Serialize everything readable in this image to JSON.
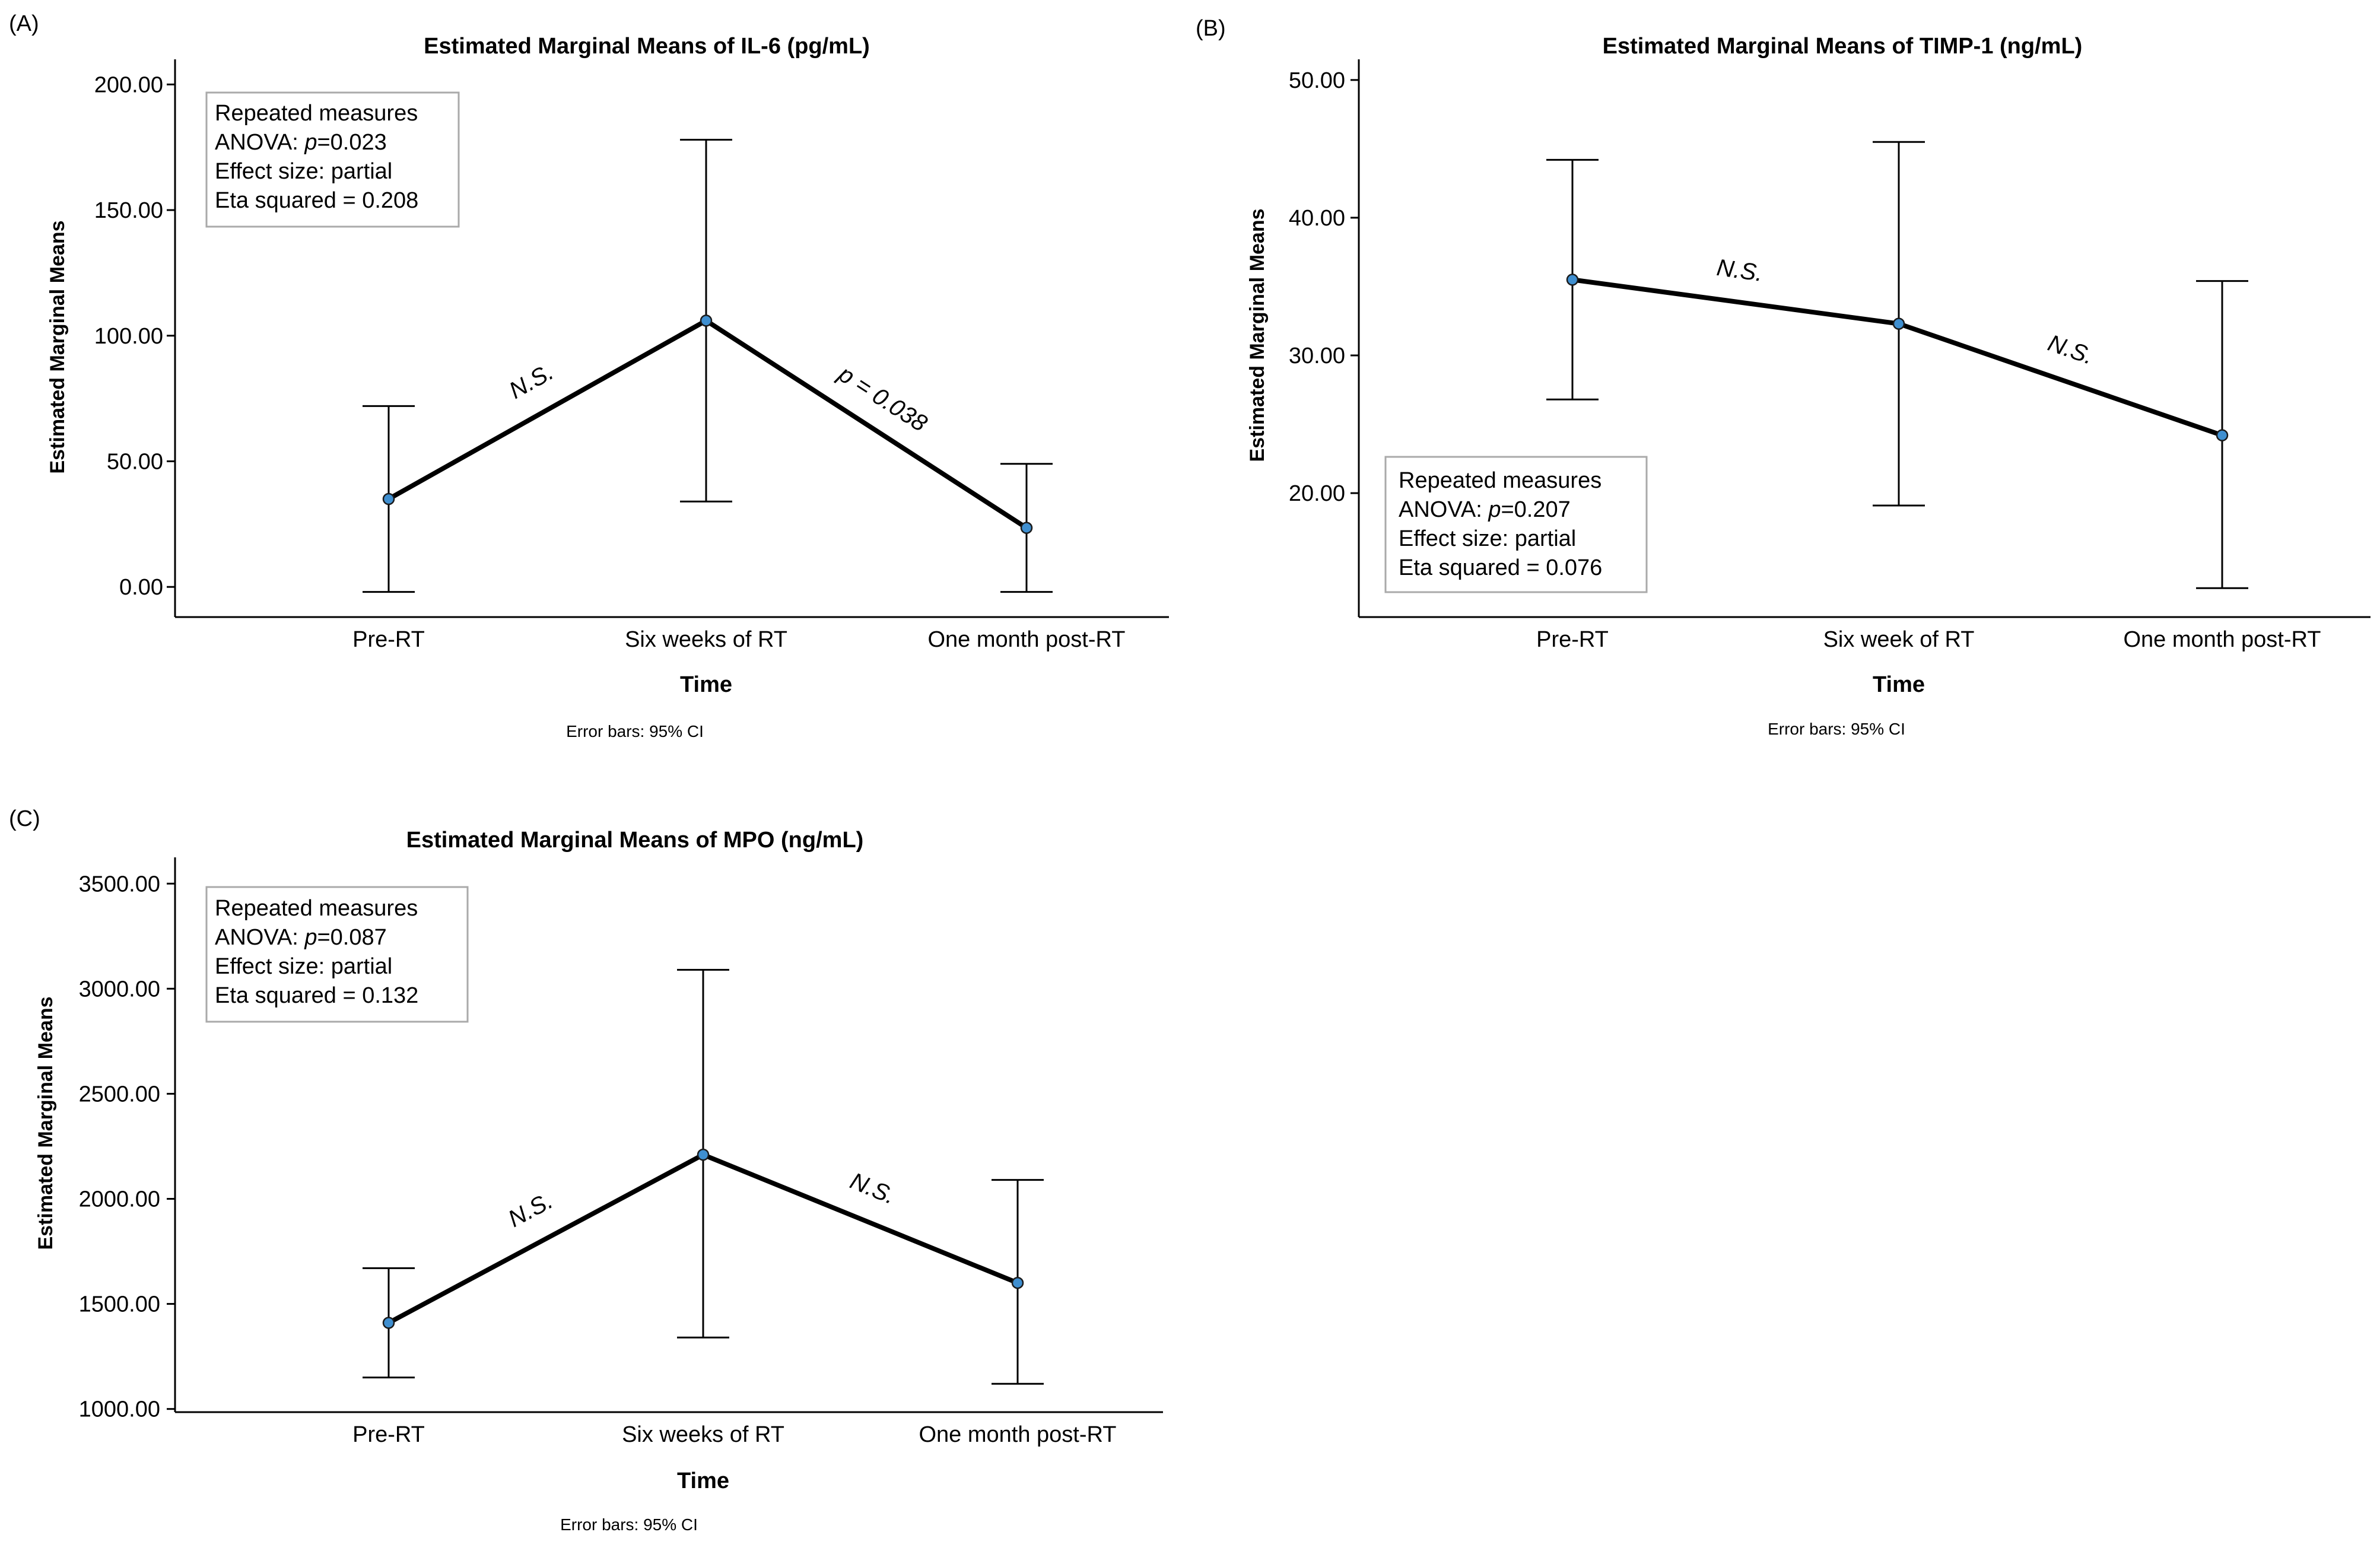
{
  "chart_data": [
    {
      "panel_label": "(A)",
      "type": "line",
      "title": "Estimated Marginal Means of IL-6 (pg/mL)",
      "xlabel": "Time",
      "ylabel": "Estimated Marginal Means",
      "categories": [
        "Pre-RT",
        "Six weeks of RT",
        "One month post-RT"
      ],
      "series": [
        {
          "values": [
            35,
            106,
            23.5
          ],
          "ci_lower": [
            -2,
            34,
            -2
          ],
          "ci_upper": [
            72,
            178,
            49
          ]
        }
      ],
      "ylim": [
        -12,
        210
      ],
      "yticks": [
        0,
        50,
        100,
        150,
        200
      ],
      "ytick_labels": [
        "0.00",
        "50.00",
        "100.00",
        "150.00",
        "200.00"
      ],
      "segment_labels": [
        "N.S.",
        "p = 0.038"
      ],
      "stats_box": [
        "Repeated measures",
        "ANOVA: p=0.023",
        "Effect size: partial",
        "Eta squared = 0.208"
      ],
      "stats_box_position": "top-left",
      "footnote": "Error bars: 95% CI",
      "grid": false
    },
    {
      "panel_label": "(B)",
      "type": "line",
      "title": "Estimated Marginal Means of TIMP-1 (ng/mL)",
      "xlabel": "Time",
      "ylabel": "Estimated Marginal Means",
      "categories": [
        "Pre-RT",
        "Six week of RT",
        "One month post-RT"
      ],
      "series": [
        {
          "values": [
            35.5,
            32.3,
            24.2
          ],
          "ci_lower": [
            26.8,
            19.1,
            13.1
          ],
          "ci_upper": [
            44.2,
            45.5,
            35.4
          ]
        }
      ],
      "ylim": [
        11,
        51.5
      ],
      "yticks": [
        20,
        30,
        40,
        50
      ],
      "ytick_labels": [
        "20.00",
        "30.00",
        "40.00",
        "50.00"
      ],
      "segment_labels": [
        "N.S.",
        "N.S."
      ],
      "stats_box": [
        "Repeated measures",
        "ANOVA: p=0.207",
        "Effect size: partial",
        "Eta squared = 0.076"
      ],
      "stats_box_position": "bottom-left",
      "footnote": "Error bars: 95% CI",
      "grid": false
    },
    {
      "panel_label": "(C)",
      "type": "line",
      "title": "Estimated Marginal Means of MPO (ng/mL)",
      "xlabel": "Time",
      "ylabel": "Estimated Marginal Means",
      "categories": [
        "Pre-RT",
        "Six weeks of RT",
        "One month post-RT"
      ],
      "series": [
        {
          "values": [
            1410,
            2210,
            1600
          ],
          "ci_lower": [
            1150,
            1340,
            1120
          ],
          "ci_upper": [
            1670,
            3090,
            2090
          ]
        }
      ],
      "ylim": [
        985,
        3625
      ],
      "yticks": [
        1000,
        1500,
        2000,
        2500,
        3000,
        3500
      ],
      "ytick_labels": [
        "1000.00",
        "1500.00",
        "2000.00",
        "2500.00",
        "3000.00",
        "3500.00"
      ],
      "segment_labels": [
        "N.S.",
        "N.S."
      ],
      "stats_box": [
        "Repeated measures",
        "ANOVA: p=0.087",
        "Effect size: partial",
        "Eta squared = 0.132"
      ],
      "stats_box_position": "top-left",
      "footnote": "Error bars: 95% CI",
      "grid": false
    }
  ]
}
